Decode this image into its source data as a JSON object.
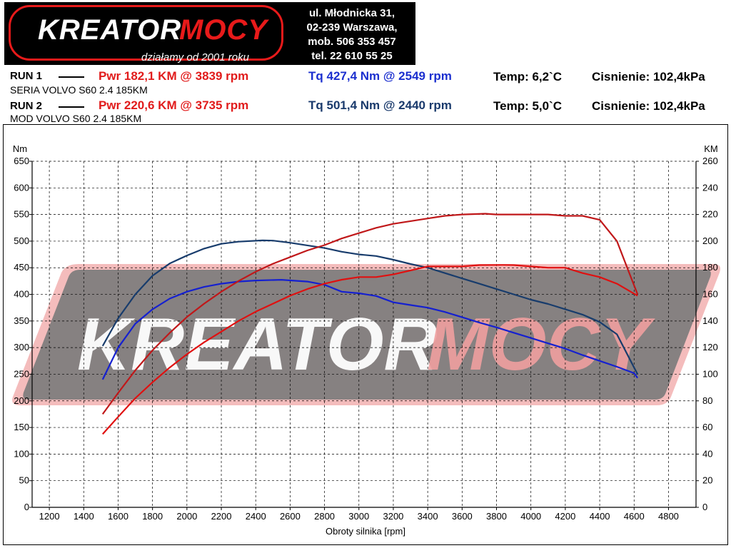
{
  "header": {
    "logo_white": "KREATOR",
    "logo_red": "MOCY",
    "logo_slogan": "działamy od 2001 roku",
    "address_1": "ul. Młodnicka 31,",
    "address_2": "02-239  Warszawa,",
    "phone_mobile": "mob.  506 353 457",
    "phone_tel": "tel.  22 610 55 25"
  },
  "runs": [
    {
      "label": "RUN 1",
      "pwr": "Pwr  182,1 KM @ 3839 rpm",
      "tq": "Tq 427,4 Nm @ 2549 rpm",
      "temp": "Temp: 6,2`C",
      "pressure": "Cisnienie: 102,4kPa",
      "description": "SERIA VOLVO S60 2.4 185KM"
    },
    {
      "label": "RUN 2",
      "pwr": "Pwr  220,6 KM @ 3735 rpm",
      "tq": "Tq 501,4 Nm @ 2440 rpm",
      "temp": "Temp: 5,0`C",
      "pressure": "Cisnienie: 102,4kPa",
      "description": "MOD VOLVO S60 2.4 185KM"
    }
  ],
  "colors": {
    "run1_power": "#e01010",
    "run2_power": "#c0181a",
    "run1_torque": "#1520d0",
    "run2_torque": "#183c6c",
    "watermark_band": "#7a7a7a",
    "watermark_border": "#f2b0b0"
  },
  "chart_data": {
    "type": "line",
    "xlabel": "Obroty silnika [rpm]",
    "ylabel_left": "Nm",
    "ylabel_right": "KM",
    "xlim": [
      1100,
      4960
    ],
    "ylim_left": [
      0,
      650
    ],
    "ylim_right": [
      0,
      260
    ],
    "x_ticks": [
      1200,
      1400,
      1600,
      1800,
      2000,
      2200,
      2400,
      2600,
      2800,
      3000,
      3200,
      3400,
      3600,
      3800,
      4000,
      4200,
      4400,
      4600,
      4800
    ],
    "y_ticks_left": [
      0,
      50,
      100,
      150,
      200,
      250,
      300,
      350,
      400,
      450,
      500,
      550,
      600,
      650
    ],
    "y_ticks_right": [
      0,
      20,
      40,
      60,
      80,
      100,
      120,
      140,
      160,
      180,
      200,
      220,
      240,
      260
    ],
    "grid": true,
    "series": [
      {
        "axis": "left",
        "color": "#1520d0",
        "x": [
          1510,
          1600,
          1700,
          1800,
          1900,
          2000,
          2100,
          2200,
          2300,
          2400,
          2549,
          2700,
          2800,
          2900,
          3000,
          3100,
          3200,
          3300,
          3400,
          3500,
          3600,
          3700,
          3800,
          3900,
          4000,
          4100,
          4200,
          4300,
          4400,
          4500,
          4600,
          4620
        ],
        "y": [
          240,
          300,
          345,
          372,
          392,
          405,
          414,
          420,
          424,
          426,
          427.4,
          424,
          418,
          405,
          402,
          397,
          385,
          380,
          375,
          367,
          357,
          347,
          338,
          328,
          318,
          308,
          298,
          286,
          275,
          264,
          252,
          243
        ]
      },
      {
        "axis": "left",
        "color": "#183c6c",
        "x": [
          1510,
          1600,
          1700,
          1800,
          1900,
          2000,
          2100,
          2200,
          2300,
          2440,
          2500,
          2600,
          2700,
          2800,
          2900,
          3000,
          3100,
          3200,
          3300,
          3400,
          3500,
          3600,
          3700,
          3800,
          3900,
          4000,
          4100,
          4200,
          4300,
          4400,
          4500,
          4620
        ],
        "y": [
          303,
          355,
          400,
          435,
          458,
          473,
          486,
          495,
          499,
          501.4,
          501,
          497,
          492,
          487,
          480,
          475,
          472,
          465,
          457,
          450,
          440,
          430,
          420,
          410,
          400,
          390,
          382,
          372,
          362,
          348,
          325,
          250
        ]
      },
      {
        "axis": "right",
        "color": "#e01010",
        "x": [
          1510,
          1600,
          1700,
          1800,
          1900,
          2000,
          2100,
          2200,
          2300,
          2400,
          2500,
          2600,
          2700,
          2800,
          2900,
          3000,
          3100,
          3200,
          3300,
          3400,
          3500,
          3600,
          3700,
          3839,
          3900,
          4000,
          4100,
          4200,
          4300,
          4400,
          4500,
          4620
        ],
        "y": [
          55,
          68,
          82,
          94,
          105,
          115,
          124,
          132,
          140,
          147,
          153,
          159,
          164,
          168,
          171,
          173,
          173,
          175,
          178,
          181,
          181,
          181,
          182,
          182.1,
          182,
          181,
          180,
          180,
          176,
          173,
          168,
          159
        ]
      },
      {
        "axis": "right",
        "color": "#c0181a",
        "x": [
          1510,
          1600,
          1700,
          1800,
          1900,
          2000,
          2100,
          2200,
          2300,
          2400,
          2500,
          2600,
          2700,
          2800,
          2900,
          3000,
          3100,
          3200,
          3300,
          3400,
          3500,
          3600,
          3735,
          3800,
          3900,
          4000,
          4100,
          4200,
          4300,
          4400,
          4500,
          4560,
          4620
        ],
        "y": [
          70,
          86,
          103,
          118,
          131,
          143,
          153,
          162,
          170,
          177,
          183,
          188,
          193,
          197,
          202,
          206,
          210,
          213,
          215,
          217,
          219,
          220,
          220.6,
          220,
          220,
          220,
          220,
          219,
          219,
          216,
          200,
          180,
          160
        ]
      }
    ]
  }
}
